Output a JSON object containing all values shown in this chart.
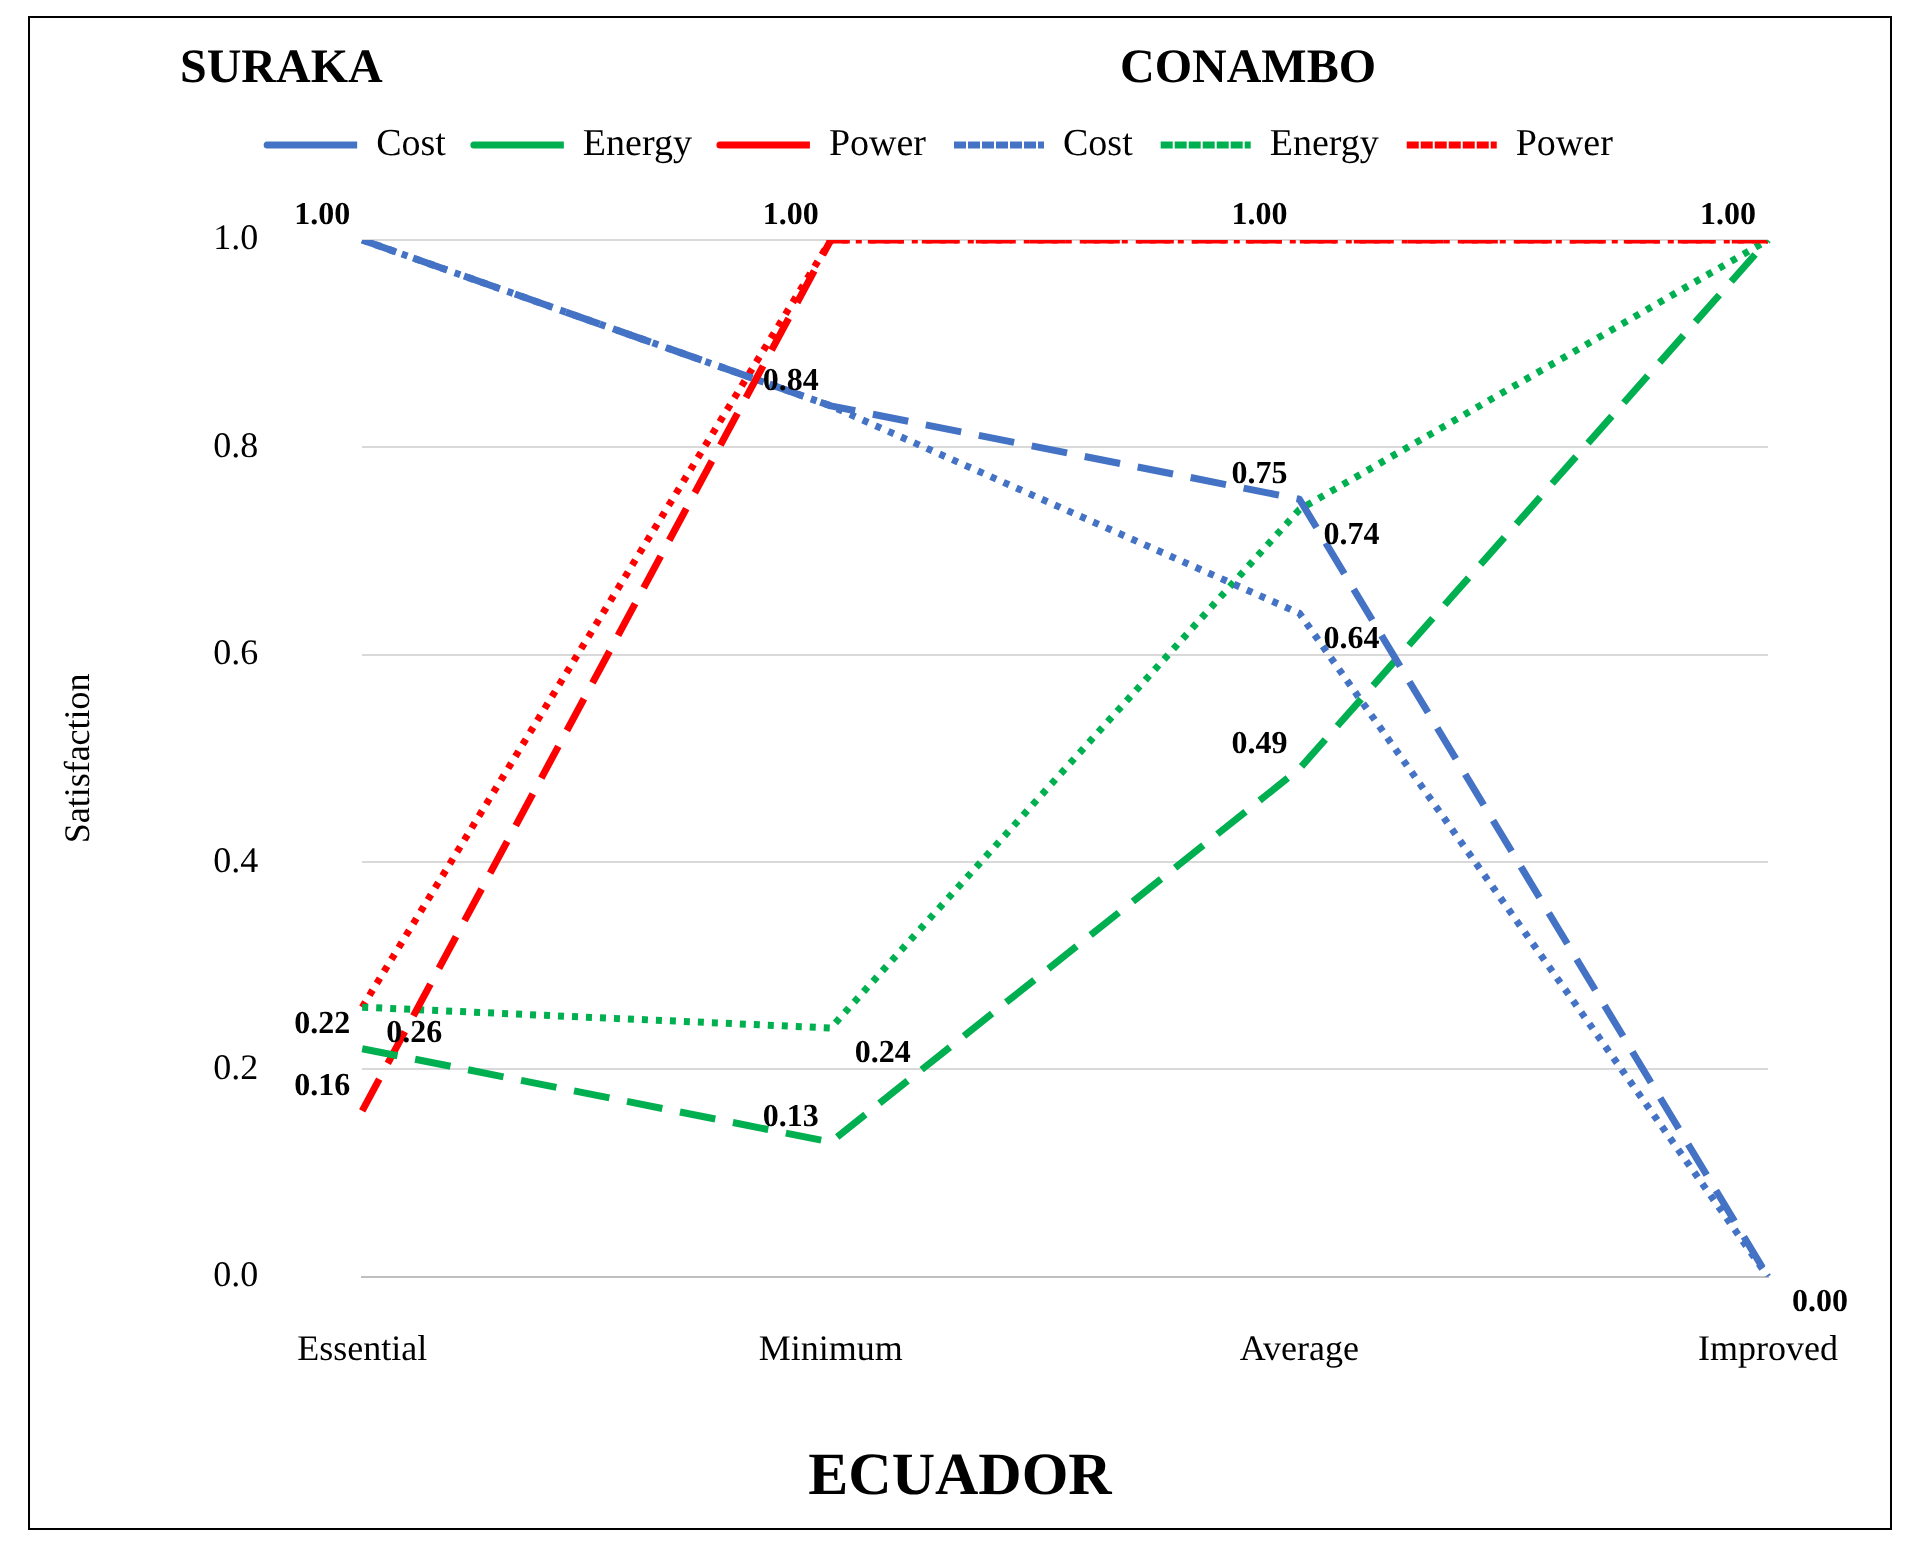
{
  "chart_data": {
    "type": "line",
    "xlabel": "ECUADOR",
    "ylabel": "Satisfaction",
    "annotations": [
      "SURAKA",
      "CONAMBO"
    ],
    "categories": [
      "Essential",
      "Minimum",
      "Average",
      "Improved"
    ],
    "ylim": [
      0,
      1
    ],
    "yticks": [
      {
        "value": 0,
        "label": "0.0"
      },
      {
        "value": 0.2,
        "label": "0.2"
      },
      {
        "value": 0.4,
        "label": "0.4"
      },
      {
        "value": 0.6,
        "label": "0.6"
      },
      {
        "value": 0.8,
        "label": "0.8"
      },
      {
        "value": 1,
        "label": "1.0"
      }
    ],
    "grid": "y",
    "legend": "top",
    "marker": "none",
    "series": [
      {
        "name": "Cost",
        "color": "#4472c4",
        "line_style": "dashed",
        "values": [
          1.0,
          0.84,
          0.75,
          0.0
        ],
        "value_labels": [
          "1.00",
          "0.84",
          "0.75",
          null
        ]
      },
      {
        "name": "Energy",
        "color": "#00b050",
        "line_style": "dashed",
        "values": [
          0.22,
          0.13,
          0.49,
          1.0
        ],
        "value_labels": [
          "0.22",
          "0.13",
          "0.49",
          "1.00"
        ]
      },
      {
        "name": "Power",
        "color": "#ff0000",
        "line_style": "dashed",
        "values": [
          0.16,
          1.0,
          1.0,
          1.0
        ],
        "value_labels": [
          "0.16",
          "1.00",
          "1.00",
          null
        ]
      },
      {
        "name": "Cost",
        "color": "#4472c4",
        "line_style": "dotted",
        "values": [
          1.0,
          0.84,
          0.64,
          0.0
        ],
        "value_labels": [
          null,
          null,
          "0.64",
          "0.00"
        ]
      },
      {
        "name": "Energy",
        "color": "#00b050",
        "line_style": "dotted",
        "values": [
          0.26,
          0.24,
          0.74,
          1.0
        ],
        "value_labels": [
          "0.26",
          "0.24",
          "0.74",
          null
        ]
      },
      {
        "name": "Power",
        "color": "#ff0000",
        "line_style": "dotted",
        "values": [
          0.26,
          1.0,
          1.0,
          1.0
        ],
        "value_labels": [
          null,
          null,
          null,
          null
        ]
      }
    ]
  }
}
